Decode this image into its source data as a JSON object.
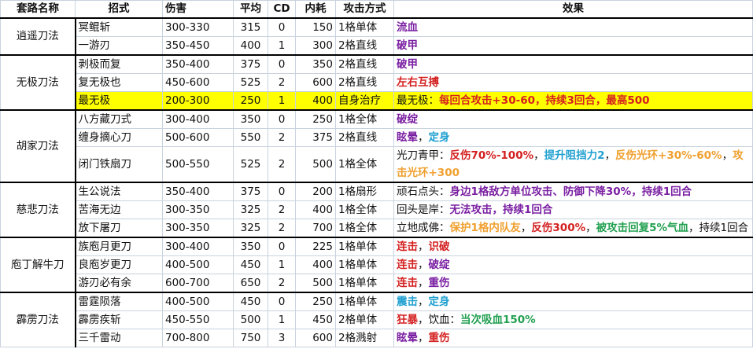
{
  "headers": [
    "套路名称",
    "招式",
    "伤害",
    "平均",
    "CD",
    "内耗",
    "攻击方式",
    "效果"
  ],
  "colors": {
    "purple": "#7a1fa2",
    "red": "#d42020",
    "blue": "#1f9fd0",
    "orange": "#f0a030",
    "green": "#22a050",
    "plain": "#111111",
    "highlight": "#ffff00"
  },
  "groups": [
    {
      "name": "逍遥刀法",
      "moves": [
        {
          "name": "冥鲲斩",
          "damage": "300-330",
          "avg": "315",
          "cd": "0",
          "cost": "150",
          "attack": "1格单体",
          "effect": [
            [
              "流血",
              "purple"
            ]
          ]
        },
        {
          "name": "一游刃",
          "damage": "350-450",
          "avg": "400",
          "cd": "1",
          "cost": "300",
          "attack": "2格直线",
          "effect": [
            [
              "破甲",
              "purple"
            ]
          ]
        }
      ]
    },
    {
      "name": "无极刀法",
      "moves": [
        {
          "name": "剥极而复",
          "damage": "350-400",
          "avg": "375",
          "cd": "0",
          "cost": "350",
          "attack": "2格直线",
          "effect": [
            [
              "破甲",
              "purple"
            ]
          ]
        },
        {
          "name": "复无极也",
          "damage": "450-600",
          "avg": "525",
          "cd": "2",
          "cost": "600",
          "attack": "2格直线",
          "effect": [
            [
              "左右互搏",
              "red"
            ]
          ]
        },
        {
          "name": "最无极",
          "damage": "200-300",
          "avg": "250",
          "cd": "1",
          "cost": "400",
          "attack": "自身治疗",
          "highlight": true,
          "effect": [
            [
              "最无极：",
              "plain"
            ],
            [
              "每回合攻击+30-60，持续3回合，最高500",
              "red"
            ]
          ]
        }
      ]
    },
    {
      "name": "胡家刀法",
      "moves": [
        {
          "name": "八方藏刀式",
          "damage": "300-400",
          "avg": "350",
          "cd": "0",
          "cost": "250",
          "attack": "1格全体",
          "effect": [
            [
              "破绽",
              "purple"
            ]
          ]
        },
        {
          "name": "缠身摘心刀",
          "damage": "500-600",
          "avg": "550",
          "cd": "2",
          "cost": "375",
          "attack": "2格直线",
          "effect": [
            [
              "眩晕",
              "purple"
            ],
            [
              "，",
              "plain"
            ],
            [
              "定身",
              "blue"
            ]
          ]
        },
        {
          "name": "闭门铁扇刀",
          "damage": "500-550",
          "avg": "525",
          "cd": "2",
          "cost": "500",
          "attack": "1格全体",
          "effect": [
            [
              "光刀青甲：",
              "plain"
            ],
            [
              "反伤70%-100%",
              "red"
            ],
            [
              "，",
              "plain"
            ],
            [
              "提升阻挡力2",
              "blue"
            ],
            [
              "，",
              "plain"
            ],
            [
              "反伤光环+30%-60%",
              "orange"
            ],
            [
              "，",
              "plain"
            ],
            [
              "攻击光环+300",
              "orange"
            ]
          ]
        }
      ]
    },
    {
      "name": "慈悲刀法",
      "moves": [
        {
          "name": "生公说法",
          "damage": "350-400",
          "avg": "375",
          "cd": "0",
          "cost": "200",
          "attack": "1格扇形",
          "effect": [
            [
              "顽石点头：",
              "plain"
            ],
            [
              "身边1格敌方单位攻击、防御下降30%，持续1回合",
              "purple"
            ]
          ]
        },
        {
          "name": "苦海无边",
          "damage": "300-350",
          "avg": "325",
          "cd": "2",
          "cost": "400",
          "attack": "1格全体",
          "effect": [
            [
              "回头是岸：",
              "plain"
            ],
            [
              "无法攻击，持续1回合",
              "purple"
            ]
          ]
        },
        {
          "name": "放下屠刀",
          "damage": "300-350",
          "avg": "325",
          "cd": "2",
          "cost": "700",
          "attack": "1格全体",
          "effect": [
            [
              "立地成佛：",
              "plain"
            ],
            [
              "保护1格内队友",
              "orange"
            ],
            [
              "，",
              "plain"
            ],
            [
              "反伤300%",
              "red"
            ],
            [
              "，",
              "plain"
            ],
            [
              "被攻击回复5%气血",
              "green"
            ],
            [
              "，持续1回合",
              "plain"
            ]
          ]
        }
      ]
    },
    {
      "name": "庖丁解牛刀",
      "moves": [
        {
          "name": "族庖月更刀",
          "damage": "300-400",
          "avg": "350",
          "cd": "0",
          "cost": "225",
          "attack": "1格单体",
          "effect": [
            [
              "连击",
              "red"
            ],
            [
              "，",
              "plain"
            ],
            [
              "识破",
              "red"
            ]
          ]
        },
        {
          "name": "良庖岁更刀",
          "damage": "400-500",
          "avg": "450",
          "cd": "1",
          "cost": "400",
          "attack": "1格单体",
          "effect": [
            [
              "连击",
              "red"
            ],
            [
              "，",
              "plain"
            ],
            [
              "破绽",
              "purple"
            ]
          ]
        },
        {
          "name": "游刃必有余",
          "damage": "600-700",
          "avg": "650",
          "cd": "2",
          "cost": "500",
          "attack": "1格单体",
          "effect": [
            [
              "连击",
              "red"
            ],
            [
              "，",
              "plain"
            ],
            [
              "重伤",
              "purple"
            ]
          ]
        }
      ]
    },
    {
      "name": "霹雳刀法",
      "moves": [
        {
          "name": "雷霆陨落",
          "damage": "400-500",
          "avg": "450",
          "cd": "0",
          "cost": "250",
          "attack": "1格单体",
          "effect": [
            [
              "震击",
              "blue"
            ],
            [
              "，",
              "plain"
            ],
            [
              "定身",
              "blue"
            ]
          ]
        },
        {
          "name": "霹雳疾斩",
          "damage": "450-550",
          "avg": "500",
          "cd": "1",
          "cost": "450",
          "attack": "2格单体",
          "effect": [
            [
              "狂暴",
              "red"
            ],
            [
              "，饮血：",
              "plain"
            ],
            [
              "当次吸血150%",
              "green"
            ]
          ]
        },
        {
          "name": "三千雷动",
          "damage": "700-800",
          "avg": "750",
          "cd": "3",
          "cost": "600",
          "attack": "2格溅射",
          "effect": [
            [
              "眩晕",
              "purple"
            ],
            [
              "，",
              "plain"
            ],
            [
              "重伤",
              "red"
            ]
          ]
        }
      ]
    }
  ]
}
